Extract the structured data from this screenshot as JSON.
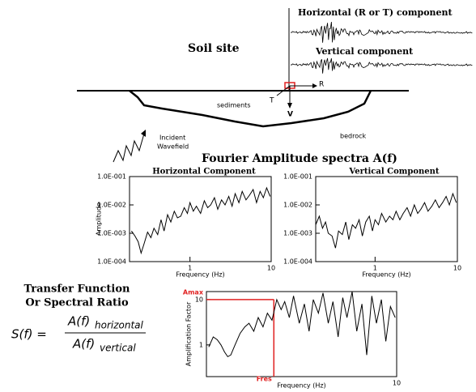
{
  "diagram": {
    "horizontal_trace": "Horizontal (R or T) component",
    "vertical_trace": "Vertical component",
    "soil_site": "Soil site",
    "r_axis": "R",
    "t_axis": "T",
    "v_axis": "V",
    "sediments": "sediments",
    "bedrock": "bedrock",
    "incident": "Incident",
    "wavefield": "Wavefield",
    "spectra_title": "Fourier Amplitude spectra A(f)",
    "transfer_title": "Transfer Function",
    "transfer_subtitle": "Or Spectral Ratio",
    "formula": {
      "lhs": "S(f) =",
      "numerator": "A(f)",
      "numerator_sub": "horizontal",
      "denominator": "A(f)",
      "denominator_sub": "vertical"
    }
  },
  "chart_data": [
    {
      "type": "line",
      "title": "Horizontal Component",
      "x_label": "Frequency (Hz)",
      "y_label": "Amplitude",
      "log_x": true,
      "log_y": true,
      "xlim": [
        0.18,
        10
      ],
      "ylim": [
        0.0001,
        0.1
      ],
      "xticks": [
        1,
        10
      ],
      "yticks": [
        {
          "value": 0.0001,
          "label": "1.0E-004"
        },
        {
          "value": 0.001,
          "label": "1.0E-003"
        },
        {
          "value": 0.01,
          "label": "1.0E-002"
        },
        {
          "value": 0.1,
          "label": "1.0E-001"
        }
      ],
      "color": "#000000",
      "x": [
        0.19,
        0.21,
        0.23,
        0.25,
        0.27,
        0.3,
        0.33,
        0.36,
        0.4,
        0.44,
        0.48,
        0.53,
        0.58,
        0.64,
        0.7,
        0.77,
        0.85,
        0.93,
        1.0,
        1.1,
        1.2,
        1.35,
        1.5,
        1.65,
        1.8,
        2,
        2.2,
        2.45,
        2.7,
        3,
        3.3,
        3.6,
        4,
        4.4,
        4.9,
        5.4,
        6,
        6.6,
        7.3,
        8,
        8.8,
        9.7
      ],
      "values": [
        0.0012,
        0.0008,
        0.0005,
        0.0002,
        0.0004,
        0.0011,
        0.0007,
        0.0015,
        0.0009,
        0.003,
        0.0012,
        0.0045,
        0.0025,
        0.006,
        0.0035,
        0.004,
        0.008,
        0.005,
        0.012,
        0.006,
        0.009,
        0.005,
        0.014,
        0.008,
        0.01,
        0.018,
        0.007,
        0.015,
        0.01,
        0.02,
        0.009,
        0.025,
        0.012,
        0.03,
        0.015,
        0.022,
        0.035,
        0.012,
        0.03,
        0.018,
        0.04,
        0.02
      ]
    },
    {
      "type": "line",
      "title": "Vertical Component",
      "x_label": "Frequency (Hz)",
      "log_x": true,
      "log_y": true,
      "xlim": [
        0.19,
        10
      ],
      "ylim": [
        0.0001,
        0.1
      ],
      "xticks": [
        1,
        10
      ],
      "yticks": [
        {
          "value": 0.0001,
          "label": "1.0E-004"
        },
        {
          "value": 0.001,
          "label": "1.0E-003"
        },
        {
          "value": 0.01,
          "label": "1.0E-002"
        },
        {
          "value": 0.1,
          "label": "1.0E-001"
        }
      ],
      "color": "#000000",
      "x": [
        0.19,
        0.21,
        0.23,
        0.25,
        0.27,
        0.3,
        0.33,
        0.36,
        0.4,
        0.44,
        0.48,
        0.53,
        0.58,
        0.64,
        0.7,
        0.77,
        0.85,
        0.93,
        1.0,
        1.1,
        1.2,
        1.35,
        1.5,
        1.65,
        1.8,
        2,
        2.2,
        2.45,
        2.7,
        3,
        3.3,
        3.6,
        4,
        4.4,
        4.9,
        5.4,
        6,
        6.6,
        7.3,
        8,
        8.8,
        9.7
      ],
      "values": [
        0.002,
        0.004,
        0.0015,
        0.0025,
        0.001,
        0.0008,
        0.0003,
        0.0012,
        0.0009,
        0.0025,
        0.0006,
        0.002,
        0.0015,
        0.003,
        0.0008,
        0.0025,
        0.004,
        0.0012,
        0.003,
        0.002,
        0.005,
        0.0025,
        0.004,
        0.003,
        0.006,
        0.003,
        0.005,
        0.008,
        0.004,
        0.01,
        0.005,
        0.007,
        0.012,
        0.006,
        0.009,
        0.015,
        0.008,
        0.012,
        0.02,
        0.01,
        0.025,
        0.012
      ]
    },
    {
      "type": "line",
      "x_label": "Frequency (Hz)",
      "y_label": "Amplification Factor",
      "log_x": true,
      "log_y": true,
      "xlim": [
        0.2,
        10
      ],
      "ylim": [
        0.2,
        15
      ],
      "xticks": [
        10
      ],
      "yticks": [
        1,
        10
      ],
      "color": "#000000",
      "x": [
        0.21,
        0.23,
        0.25,
        0.27,
        0.29,
        0.31,
        0.33,
        0.36,
        0.4,
        0.44,
        0.48,
        0.53,
        0.58,
        0.64,
        0.7,
        0.77,
        0.85,
        0.93,
        1.0,
        1.1,
        1.2,
        1.35,
        1.5,
        1.65,
        1.8,
        2,
        2.2,
        2.45,
        2.7,
        3,
        3.3,
        3.6,
        4,
        4.4,
        4.9,
        5.4,
        6,
        6.6,
        7.3,
        8,
        8.8,
        9.7
      ],
      "values": [
        0.9,
        1.5,
        1.3,
        1.0,
        0.7,
        0.55,
        0.6,
        1.0,
        1.8,
        2.5,
        3.0,
        2.0,
        4.0,
        2.5,
        5.0,
        3.5,
        10,
        6,
        9,
        4,
        12,
        3,
        8,
        2,
        10,
        5,
        14,
        3,
        9,
        1.5,
        11,
        4,
        15,
        2,
        8,
        0.6,
        12,
        3,
        10,
        1.2,
        7,
        4
      ],
      "annotations": [
        {
          "label": "Amax",
          "axis": "y",
          "value": 10,
          "color": "#e02020"
        },
        {
          "label": "Fres",
          "axis": "x",
          "value": 0.8,
          "color": "#e02020"
        }
      ]
    }
  ]
}
